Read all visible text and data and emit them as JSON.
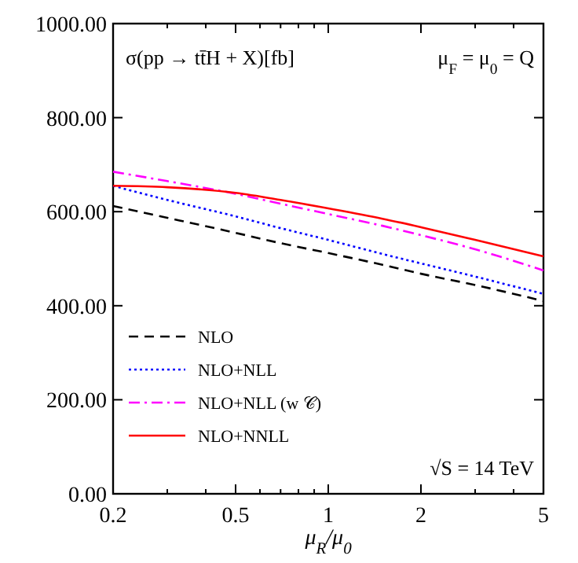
{
  "chart_data": {
    "type": "line",
    "xlabel": "μ$_{R}$/μ$_{0}$",
    "log": "x",
    "x": [
      0.2,
      0.3,
      0.5,
      0.7,
      1,
      1.5,
      2,
      3,
      5
    ],
    "xlim": [
      0.2,
      5
    ],
    "xticks": [
      0.2,
      {
        "value": 0.3,
        "label": null
      },
      {
        "value": 0.4,
        "label": null
      },
      0.5,
      {
        "value": 0.6,
        "label": null
      },
      {
        "value": 0.7,
        "label": null
      },
      {
        "value": 0.8,
        "label": null
      },
      {
        "value": 0.9,
        "label": null
      },
      1,
      2,
      {
        "value": 3,
        "label": null
      },
      {
        "value": 4,
        "label": null
      },
      5
    ],
    "ylim": [
      0,
      1000
    ],
    "yticks": [
      {
        "value": 0,
        "label": "0.00"
      },
      {
        "value": 200,
        "label": "200.00"
      },
      {
        "value": 400,
        "label": "400.00"
      },
      {
        "value": 600,
        "label": "600.00"
      },
      {
        "value": 800,
        "label": "800.00"
      },
      {
        "value": 1000,
        "label": "1000.00"
      }
    ],
    "legend": "bottom left",
    "grid": false,
    "annotations": [
      "σ(pp → tt̄H + X)[fb]",
      "μ$_{F}$ = μ$_{0}$ = Q",
      "√S = 14 TeV"
    ],
    "series": [
      {
        "name": "NLO",
        "color": "#000000",
        "line_style": "dashed",
        "values": [
          612,
          587,
          555,
          533,
          512,
          487,
          468,
          444,
          410
        ]
      },
      {
        "name": "NLO+NLL",
        "color": "#0000ff",
        "line_style": "dotted",
        "values": [
          655,
          625,
          590,
          565,
          540,
          510,
          490,
          462,
          425
        ]
      },
      {
        "name": "NLO+NLL (w 𝒞)",
        "color": "#ff00ff",
        "line_style": "dashdot",
        "values": [
          685,
          665,
          638,
          617,
          595,
          570,
          550,
          520,
          475
        ]
      },
      {
        "name": "NLO+NNLL",
        "color": "#ff0000",
        "line_style": "solid",
        "values": [
          655,
          652,
          640,
          625,
          607,
          585,
          567,
          540,
          505
        ]
      }
    ]
  }
}
